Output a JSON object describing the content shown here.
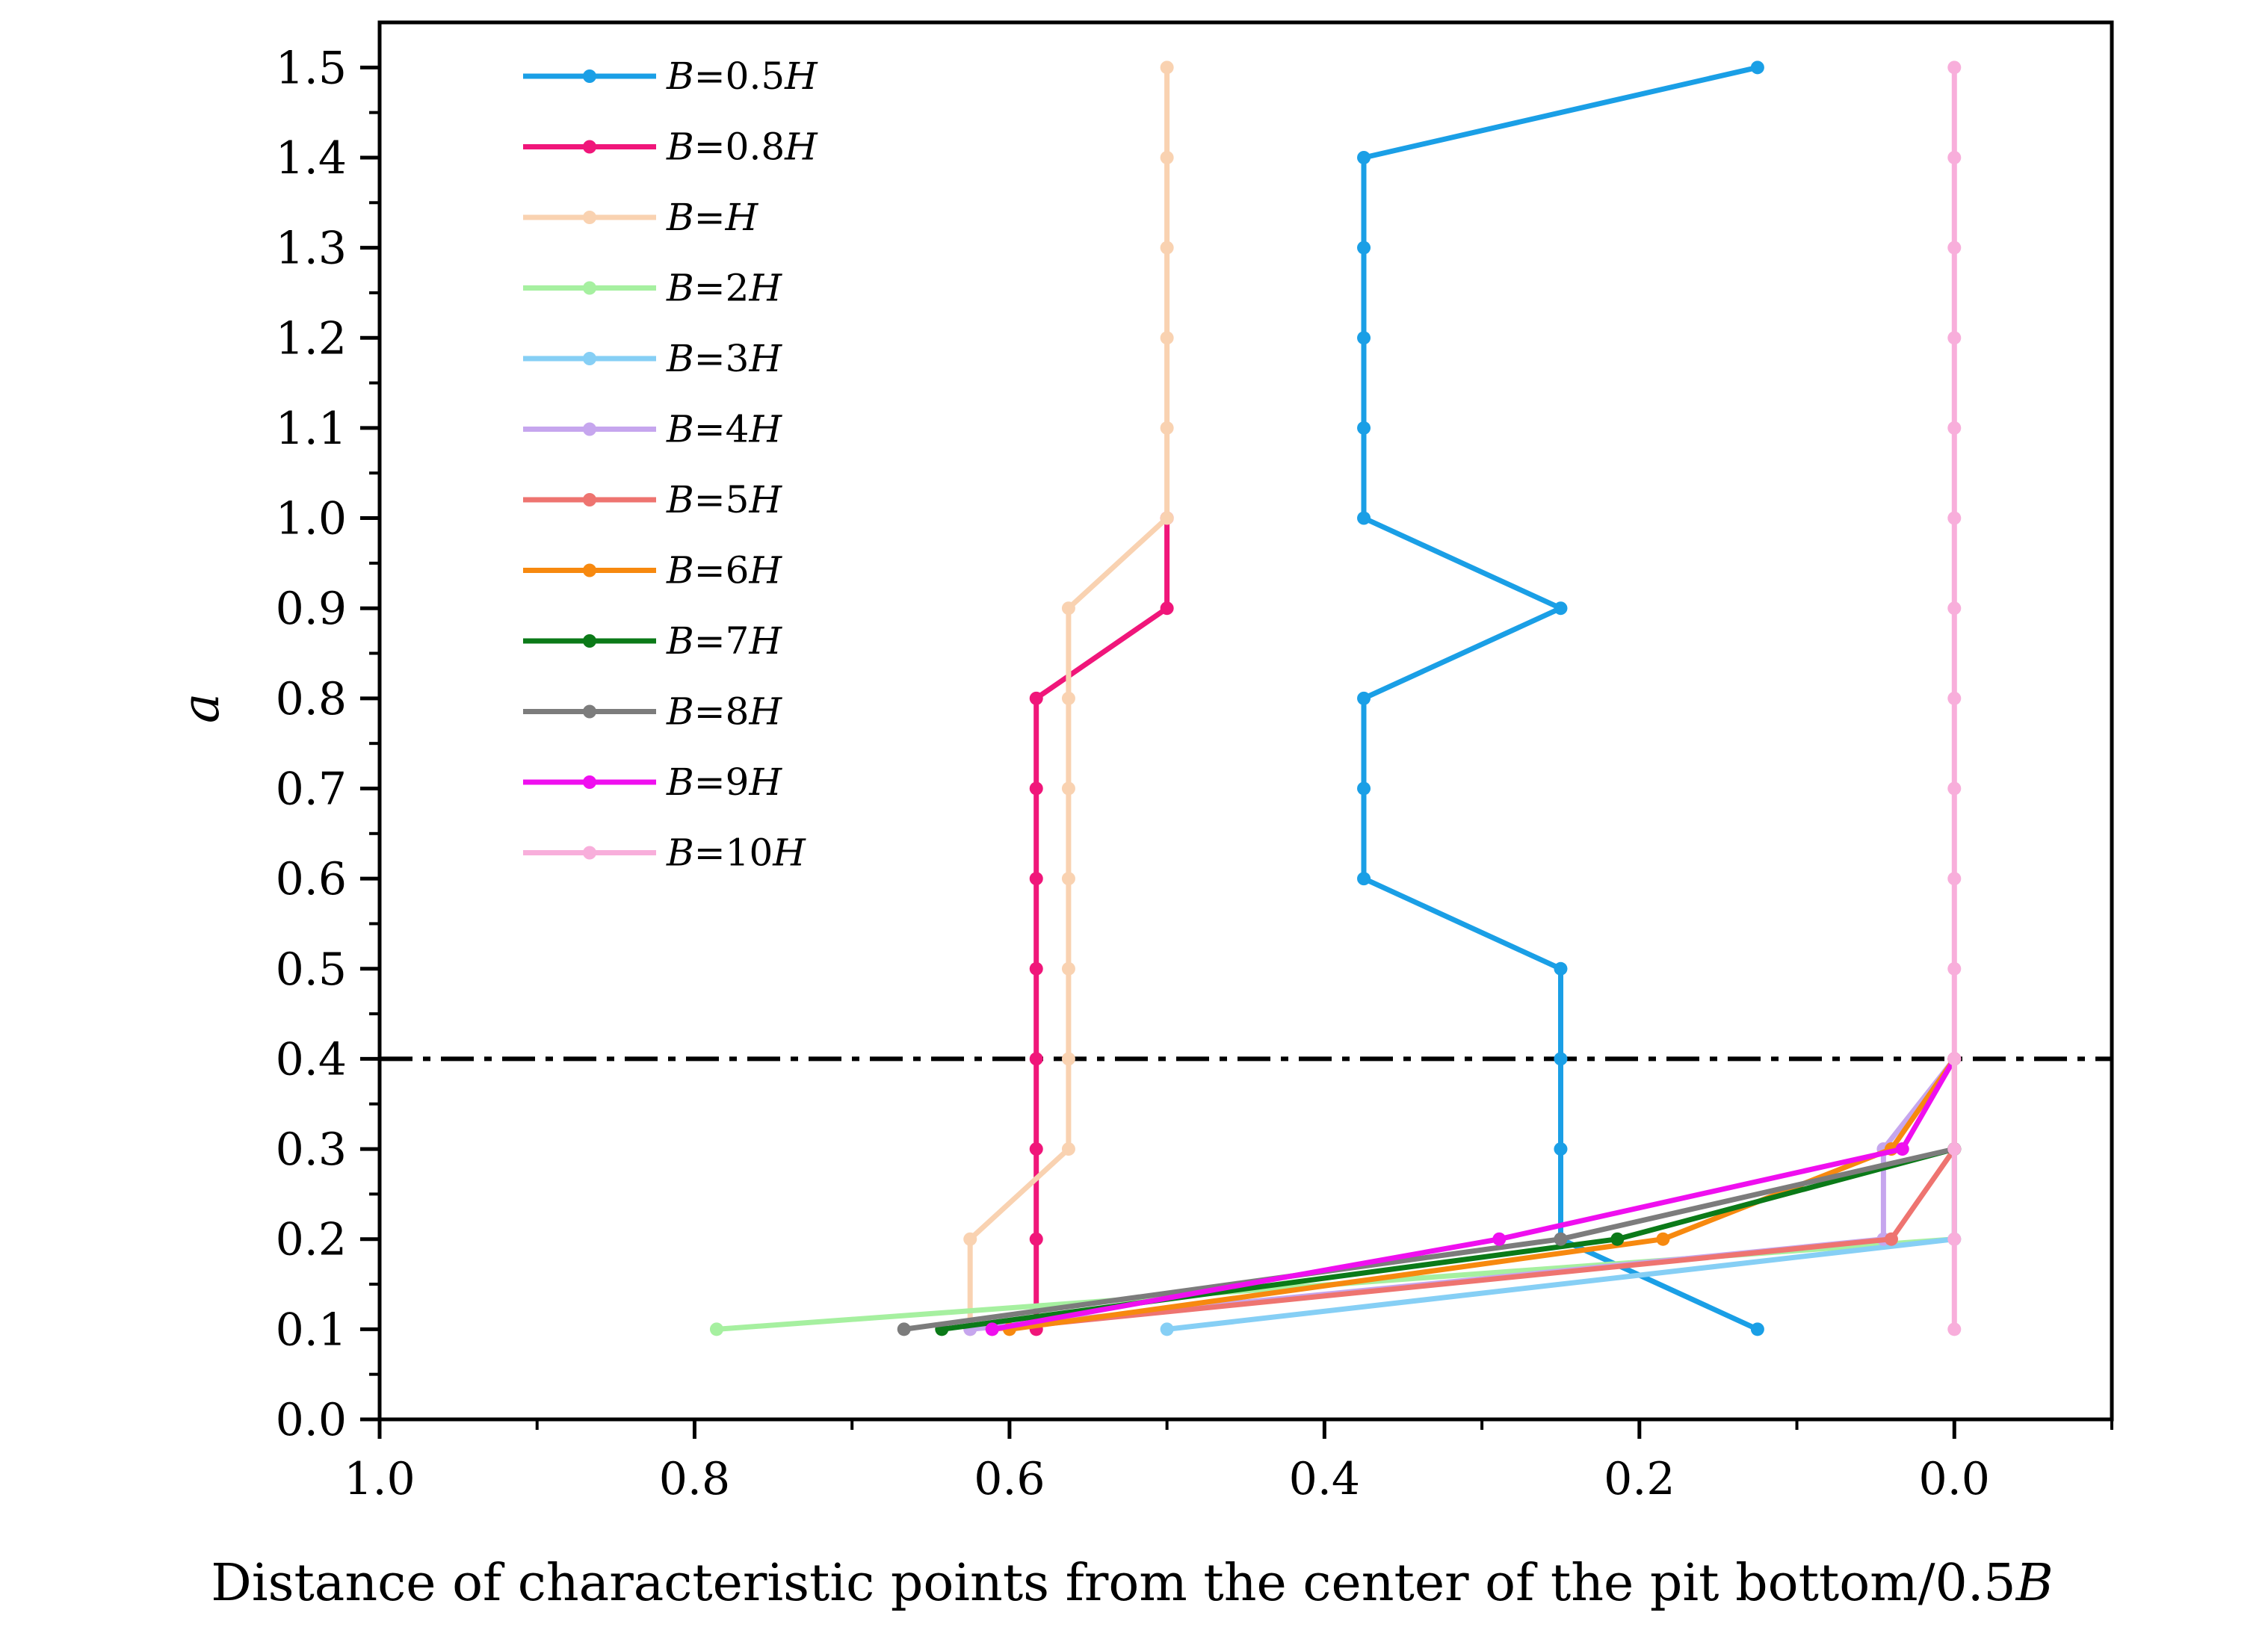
{
  "chart_data": {
    "type": "line",
    "title": "",
    "xlabel_prefix": "Distance of characteristic points from the center of the pit bottom/0.5",
    "xlabel_var": "B",
    "ylabel": "a",
    "xlim": [
      1.0,
      -0.1
    ],
    "ylim": [
      0.0,
      1.55
    ],
    "x_ticks": [
      1.0,
      0.8,
      0.6,
      0.4,
      0.2,
      0.0
    ],
    "x_tick_labels": [
      "1.0",
      "0.8",
      "0.6",
      "0.4",
      "0.2",
      "0.0"
    ],
    "y_ticks": [
      0.0,
      0.1,
      0.2,
      0.3,
      0.4,
      0.5,
      0.6,
      0.7,
      0.8,
      0.9,
      1.0,
      1.1,
      1.2,
      1.3,
      1.4,
      1.5
    ],
    "y_tick_labels": [
      "0.0",
      "0.1",
      "0.2",
      "0.3",
      "0.4",
      "0.5",
      "0.6",
      "0.7",
      "0.8",
      "0.9",
      "1.0",
      "1.1",
      "1.2",
      "1.3",
      "1.4",
      "1.5"
    ],
    "reference_line": {
      "y": 0.4,
      "style": "dash-dot",
      "color": "#000000"
    },
    "legend_location": "upper-left",
    "series": [
      {
        "name": "B=0.5H",
        "legend_var": "B",
        "legend_mid": "=0.5",
        "legend_unit": "H",
        "color": "#1a9fe6",
        "x": [
          0.125,
          0.25,
          0.25,
          0.25,
          0.25,
          0.375,
          0.375,
          0.375,
          0.25,
          0.375,
          0.375,
          0.375,
          0.375,
          0.375,
          0.125
        ],
        "y": [
          0.1,
          0.2,
          0.3,
          0.4,
          0.5,
          0.6,
          0.7,
          0.8,
          0.9,
          1.0,
          1.1,
          1.2,
          1.3,
          1.4,
          1.5
        ]
      },
      {
        "name": "B=0.8H",
        "legend_var": "B",
        "legend_mid": "=0.8",
        "legend_unit": "H",
        "color": "#f0167a",
        "x": [
          0.583,
          0.583,
          0.583,
          0.583,
          0.583,
          0.583,
          0.583,
          0.583,
          0.5,
          0.5
        ],
        "y": [
          0.1,
          0.2,
          0.3,
          0.4,
          0.5,
          0.6,
          0.7,
          0.8,
          0.9,
          1.0
        ]
      },
      {
        "name": "B=H",
        "legend_var": "B",
        "legend_mid": "=",
        "legend_unit": "H",
        "color": "#f9d2b1",
        "x": [
          0.625,
          0.625,
          0.5625,
          0.5625,
          0.5625,
          0.5625,
          0.5625,
          0.5625,
          0.5625,
          0.5,
          0.5,
          0.5,
          0.5,
          0.5,
          0.5
        ],
        "y": [
          0.1,
          0.2,
          0.3,
          0.4,
          0.5,
          0.6,
          0.7,
          0.8,
          0.9,
          1.0,
          1.1,
          1.2,
          1.3,
          1.4,
          1.5
        ]
      },
      {
        "name": "B=2H",
        "legend_var": "B",
        "legend_mid": "=2",
        "legend_unit": "H",
        "color": "#a6f0a0",
        "x": [
          0.786,
          0.0,
          0.0
        ],
        "y": [
          0.1,
          0.2,
          0.3
        ]
      },
      {
        "name": "B=3H",
        "legend_var": "B",
        "legend_mid": "=3",
        "legend_unit": "H",
        "color": "#86cff5",
        "x": [
          0.5,
          0.0,
          0.0
        ],
        "y": [
          0.1,
          0.2,
          0.3
        ]
      },
      {
        "name": "B=4H",
        "legend_var": "B",
        "legend_mid": "=4",
        "legend_unit": "H",
        "color": "#c6a6ee",
        "x": [
          0.625,
          0.045,
          0.045,
          0.0
        ],
        "y": [
          0.1,
          0.2,
          0.3,
          0.4
        ]
      },
      {
        "name": "B=5H",
        "legend_var": "B",
        "legend_mid": "=5",
        "legend_unit": "H",
        "color": "#ee7470",
        "x": [
          0.611,
          0.04,
          0.0,
          0.0
        ],
        "y": [
          0.1,
          0.2,
          0.3,
          0.4
        ]
      },
      {
        "name": "B=6H",
        "legend_var": "B",
        "legend_mid": "=6",
        "legend_unit": "H",
        "color": "#f7890f",
        "x": [
          0.6,
          0.185,
          0.04,
          0.0
        ],
        "y": [
          0.1,
          0.2,
          0.3,
          0.4
        ]
      },
      {
        "name": "B=7H",
        "legend_var": "B",
        "legend_mid": "=7",
        "legend_unit": "H",
        "color": "#0b7a18",
        "x": [
          0.643,
          0.214,
          0.0
        ],
        "y": [
          0.1,
          0.2,
          0.3
        ]
      },
      {
        "name": "B=8H",
        "legend_var": "B",
        "legend_mid": "=8",
        "legend_unit": "H",
        "color": "#7c7c7c",
        "x": [
          0.667,
          0.25,
          0.0
        ],
        "y": [
          0.1,
          0.2,
          0.3
        ]
      },
      {
        "name": "B=9H",
        "legend_var": "B",
        "legend_mid": "=9",
        "legend_unit": "H",
        "color": "#ef0fef",
        "x": [
          0.611,
          0.289,
          0.033,
          0.0
        ],
        "y": [
          0.1,
          0.2,
          0.3,
          0.4
        ]
      },
      {
        "name": "B=10H",
        "legend_var": "B",
        "legend_mid": "=10",
        "legend_unit": "H",
        "color": "#f8aedb",
        "x": [
          0.0,
          0.0,
          0.0,
          0.0,
          0.0,
          0.0,
          0.0,
          0.0,
          0.0,
          0.0,
          0.0,
          0.0,
          0.0,
          0.0,
          0.0
        ],
        "y": [
          0.1,
          0.2,
          0.3,
          0.4,
          0.5,
          0.6,
          0.7,
          0.8,
          0.9,
          1.0,
          1.1,
          1.2,
          1.3,
          1.4,
          1.5
        ]
      }
    ]
  }
}
